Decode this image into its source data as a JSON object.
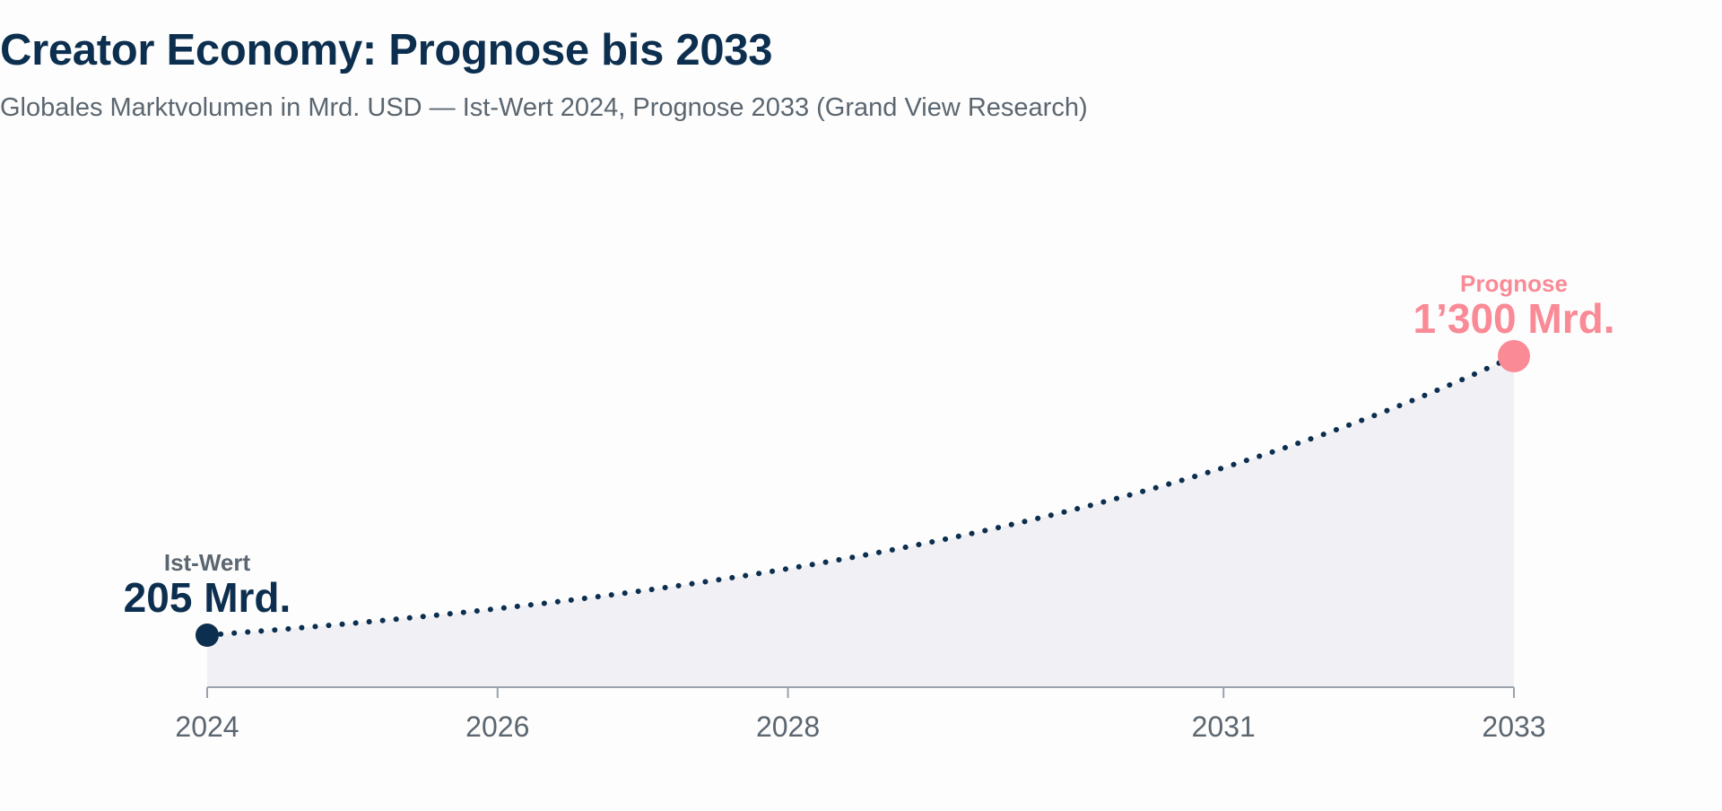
{
  "chart_data": {
    "type": "area",
    "title": "Creator Economy: Prognose bis 2033",
    "subtitle": "Globales Marktvolumen in Mrd. USD — Ist-Wert 2024, Prognose 2033 (Grand View Research)",
    "unit": "Mrd. USD",
    "x_ticks": [
      "2024",
      "2026",
      "2028",
      "2031",
      "2033"
    ],
    "xlim": [
      2024,
      2033
    ],
    "grid": false,
    "points": [
      {
        "x": 2024,
        "y": 205,
        "label": "Ist-Wert",
        "value_label": "205 Mrd."
      },
      {
        "x": 2033,
        "y": 1300,
        "label": "Prognose",
        "value_label": "1’300 Mrd."
      }
    ],
    "curve": "exponential (dotted line, shaded area below)"
  },
  "colors": {
    "title": "#0d2f4f",
    "subtitle": "#5b6670",
    "actual": "#0d2f4f",
    "forecast": "#f98a96",
    "area_fill": "#f1f1f5",
    "axis": "#9aa2ab"
  }
}
